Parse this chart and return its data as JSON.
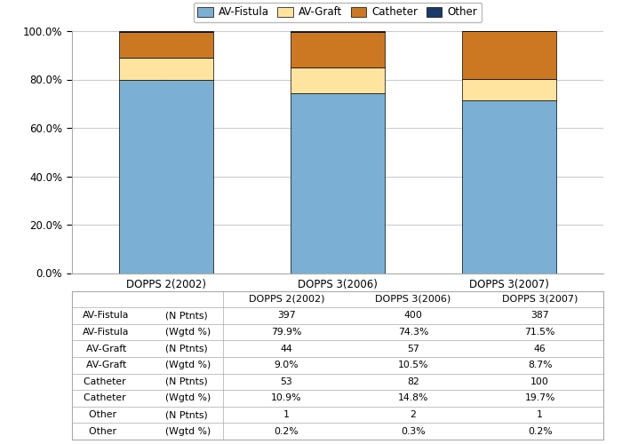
{
  "categories": [
    "DOPPS 2(2002)",
    "DOPPS 3(2006)",
    "DOPPS 3(2007)"
  ],
  "av_fistula": [
    79.9,
    74.3,
    71.5
  ],
  "av_graft": [
    9.0,
    10.5,
    8.7
  ],
  "catheter": [
    10.9,
    14.8,
    19.7
  ],
  "other": [
    0.2,
    0.3,
    0.2
  ],
  "colors": {
    "av_fistula": "#7BAFD4",
    "av_graft": "#FFE4A0",
    "catheter": "#CC7722",
    "other": "#1A3A6B"
  },
  "legend_labels": [
    "AV-Fistula",
    "AV-Graft",
    "Catheter",
    "Other"
  ],
  "ylim": [
    0,
    100
  ],
  "yticks": [
    0,
    20,
    40,
    60,
    80,
    100
  ],
  "ytick_labels": [
    "0.0%",
    "20.0%",
    "40.0%",
    "60.0%",
    "80.0%",
    "100.0%"
  ],
  "table_row_labels_col1": [
    "AV-Fistula",
    "AV-Fistula",
    "AV-Graft ",
    "AV-Graft ",
    "Catheter ",
    "Catheter ",
    "Other    ",
    "Other    "
  ],
  "table_row_labels_col2": [
    "(N Ptnts)",
    "(Wgtd %)",
    "(N Ptnts)",
    "(Wgtd %)",
    "(N Ptnts)",
    "(Wgtd %)",
    "(N Ptnts)",
    "(Wgtd %)"
  ],
  "table_data": [
    [
      "397",
      "400",
      "387"
    ],
    [
      "79.9%",
      "74.3%",
      "71.5%"
    ],
    [
      "44",
      "57",
      "46"
    ],
    [
      "9.0%",
      "10.5%",
      "8.7%"
    ],
    [
      "53",
      "82",
      "100"
    ],
    [
      "10.9%",
      "14.8%",
      "19.7%"
    ],
    [
      "1",
      "2",
      "1"
    ],
    [
      "0.2%",
      "0.3%",
      "0.2%"
    ]
  ],
  "bar_width": 0.55,
  "background_color": "#FFFFFF",
  "grid_color": "#CCCCCC",
  "border_color": "#AAAAAA"
}
